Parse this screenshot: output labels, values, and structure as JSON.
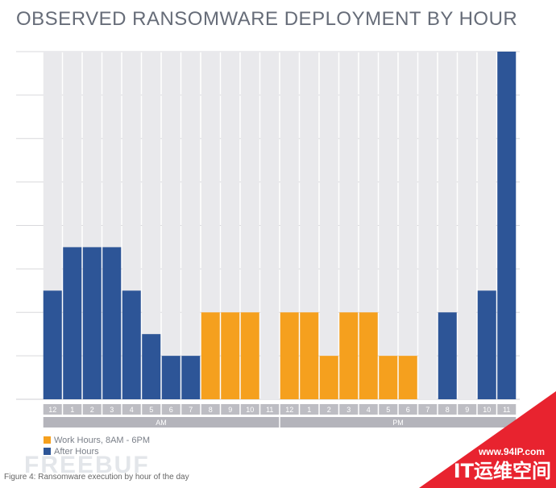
{
  "chart_data": {
    "type": "bar",
    "title": "OBSERVED RANSOMWARE DEPLOYMENT BY HOUR",
    "categories": [
      "12",
      "1",
      "2",
      "3",
      "4",
      "5",
      "6",
      "7",
      "8",
      "9",
      "10",
      "11",
      "12",
      "1",
      "2",
      "3",
      "4",
      "5",
      "6",
      "7",
      "8",
      "9",
      "10",
      "11"
    ],
    "periods": [
      {
        "label": "AM",
        "start": 0,
        "end": 11
      },
      {
        "label": "PM",
        "start": 12,
        "end": 23
      }
    ],
    "values": [
      5,
      7,
      7,
      7,
      5,
      3,
      2,
      2,
      4,
      4,
      4,
      0,
      4,
      4,
      2,
      4,
      4,
      2,
      2,
      0,
      4,
      0,
      5,
      16
    ],
    "series": [
      {
        "name": "Work Hours, 8AM - 6PM",
        "color": "#f5a01e",
        "indices": [
          8,
          9,
          10,
          11,
          12,
          13,
          14,
          15,
          16,
          17,
          18
        ]
      },
      {
        "name": "After Hours",
        "color": "#2d5597",
        "indices": [
          0,
          1,
          2,
          3,
          4,
          5,
          6,
          7,
          19,
          20,
          21,
          22,
          23
        ]
      }
    ],
    "ylim": [
      0,
      16
    ],
    "gridlines": [
      2,
      4,
      6,
      8,
      10,
      12,
      14,
      16
    ],
    "grid": true
  },
  "legend": {
    "work_label": "Work Hours, 8AM - 6PM",
    "after_label": "After Hours"
  },
  "caption": "Figure 4: Ransomware execution by hour of the day",
  "watermark": {
    "logo_text": "FREEBUF",
    "badge_url": "www.94IP.com",
    "badge_text": "IT运维空间",
    "badge_color": "#e8232f"
  }
}
